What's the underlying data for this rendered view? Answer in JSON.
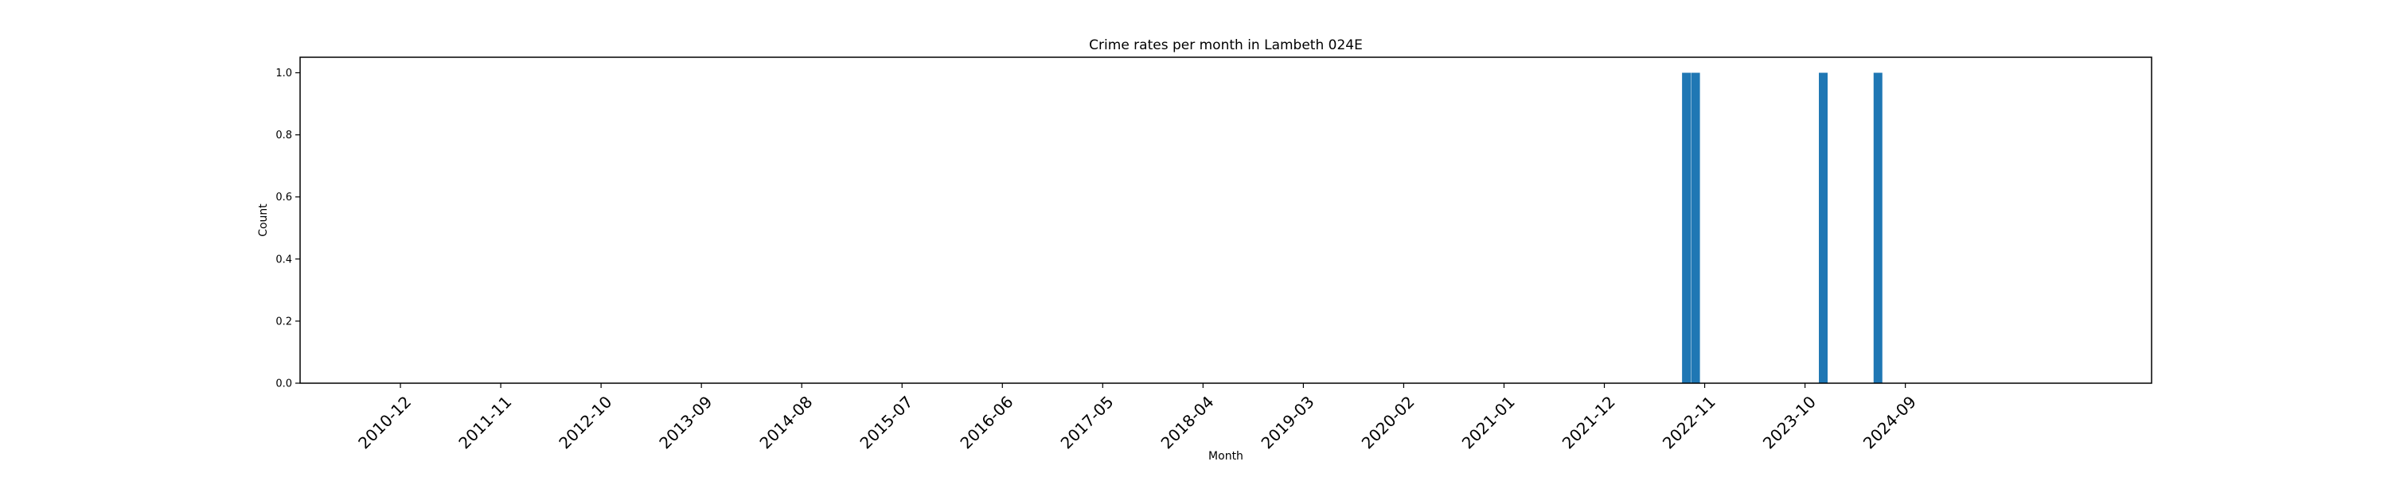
{
  "chart_data": {
    "type": "bar",
    "title": "Crime rates per month in Lambeth 024E",
    "xlabel": "Month",
    "ylabel": "Count",
    "ylim": [
      0,
      1.05
    ],
    "xlim": [
      "2010-01",
      "2026-12"
    ],
    "yticks": [
      "0.0",
      "0.2",
      "0.4",
      "0.6",
      "0.8",
      "1.0"
    ],
    "xticks": [
      "2010-12",
      "2011-11",
      "2012-10",
      "2013-09",
      "2014-08",
      "2015-07",
      "2016-06",
      "2017-05",
      "2018-04",
      "2019-03",
      "2020-02",
      "2021-01",
      "2021-12",
      "2022-11",
      "2023-10",
      "2024-09"
    ],
    "categories": [
      "2022-09",
      "2022-10",
      "2023-12",
      "2024-06"
    ],
    "values": [
      1,
      1,
      1,
      1
    ],
    "grid": false,
    "bar_color": "#1f77b4"
  }
}
